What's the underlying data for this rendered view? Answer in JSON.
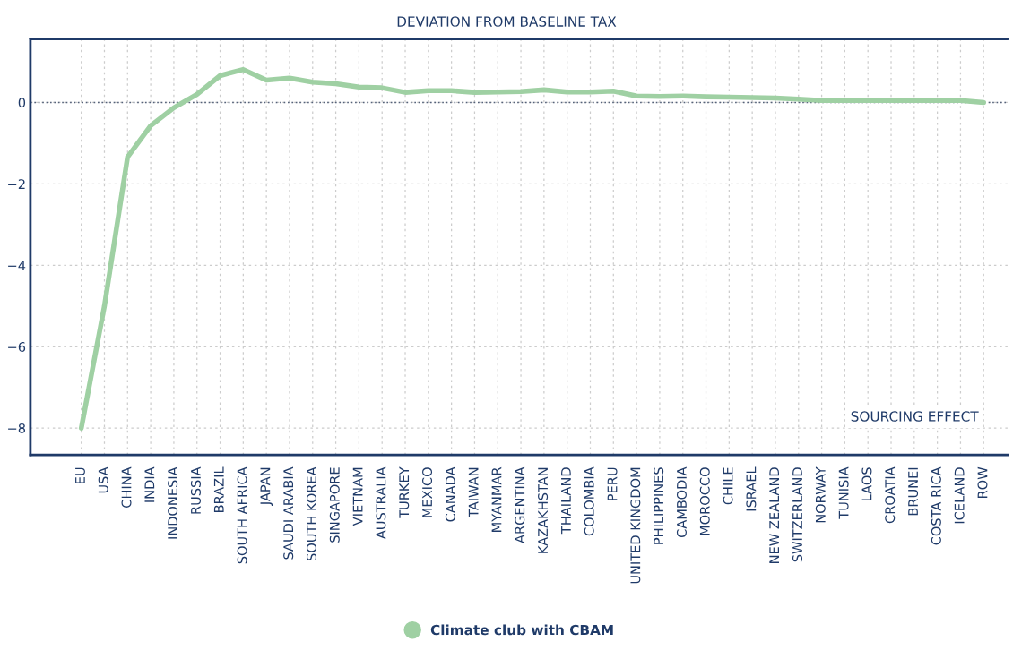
{
  "chart_data": {
    "type": "line",
    "title": "DEVIATION FROM BASELINE TAX",
    "categories": [
      "EU",
      "USA",
      "CHINA",
      "INDIA",
      "INDONESIA",
      "RUSSIA",
      "BRAZIL",
      "SOUTH AFRICA",
      "JAPAN",
      "SAUDI ARABIA",
      "SOUTH KOREA",
      "SINGAPORE",
      "VIETNAM",
      "AUSTRALIA",
      "TURKEY",
      "MEXICO",
      "CANADA",
      "TAIWAN",
      "MYANMAR",
      "ARGENTINA",
      "KAZAKHSTAN",
      "THAILAND",
      "COLOMBIA",
      "PERU",
      "UNITED KINGDOM",
      "PHILIPPINES",
      "CAMBODIA",
      "MOROCCO",
      "CHILE",
      "ISRAEL",
      "NEW ZEALAND",
      "SWITZERLAND",
      "NORWAY",
      "TUNISIA",
      "LAOS",
      "CROATIA",
      "BRUNEI",
      "COSTA RICA",
      "ICELAND",
      "ROW"
    ],
    "series": [
      {
        "name": "Climate club with CBAM",
        "color": "#9fd0a3",
        "values": [
          -8.0,
          -5.0,
          -1.34,
          -0.57,
          -0.13,
          0.2,
          0.66,
          0.81,
          0.55,
          0.6,
          0.5,
          0.46,
          0.38,
          0.36,
          0.25,
          0.29,
          0.29,
          0.25,
          0.26,
          0.27,
          0.31,
          0.26,
          0.26,
          0.28,
          0.16,
          0.15,
          0.16,
          0.14,
          0.13,
          0.12,
          0.11,
          0.08,
          0.05,
          0.05,
          0.05,
          0.05,
          0.05,
          0.05,
          0.05,
          0.0
        ]
      }
    ],
    "ylim": [
      -8.66,
      1.56
    ],
    "yticks": [
      {
        "value": -8,
        "label": "−8"
      },
      {
        "value": -6,
        "label": "−6"
      },
      {
        "value": -4,
        "label": "−4"
      },
      {
        "value": -2,
        "label": "−2"
      },
      0
    ],
    "ref_lines": [
      {
        "axis": "y",
        "value": 0,
        "color": "#55627a",
        "line_style": "dotted"
      }
    ],
    "annotations": [
      "SOURCING EFFECT"
    ],
    "grid": true,
    "legend": "bottom",
    "marker": "none",
    "line_style": "solid"
  }
}
